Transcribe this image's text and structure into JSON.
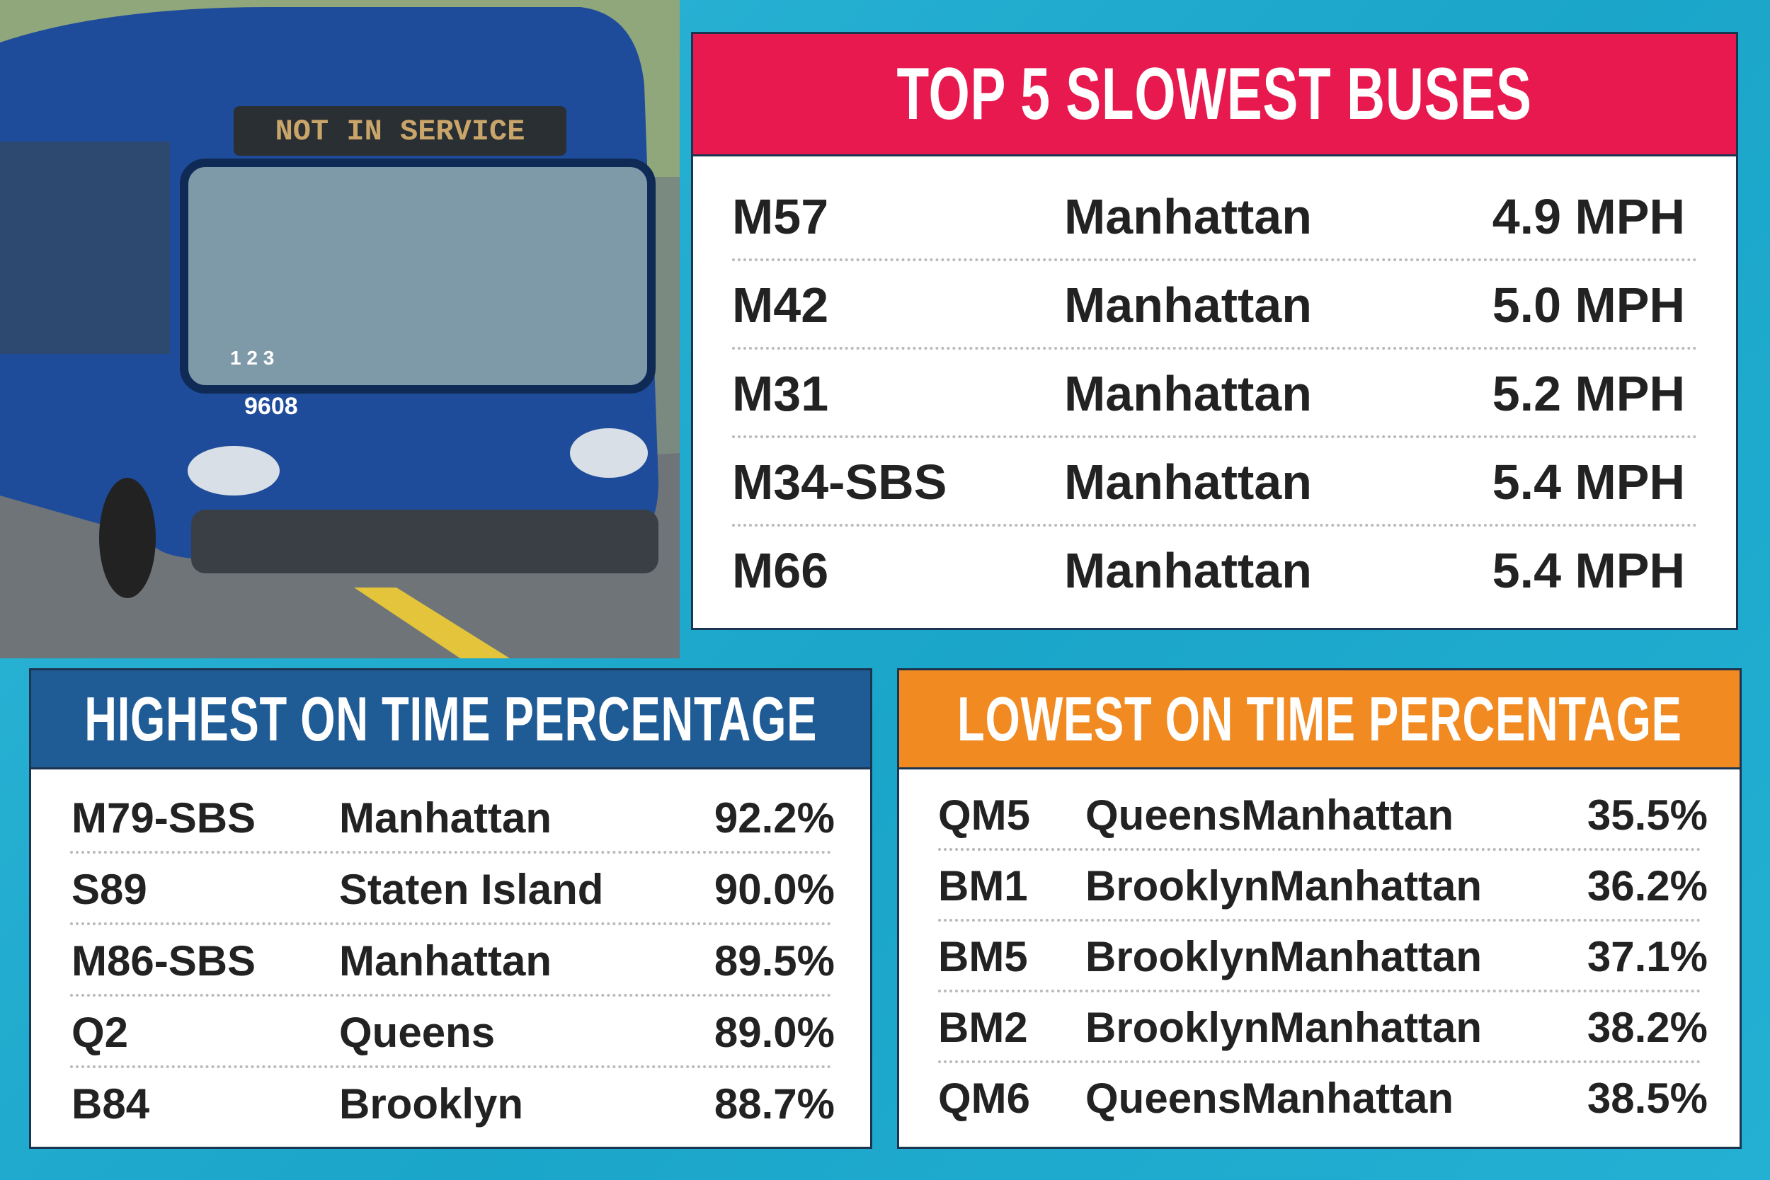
{
  "photo": {
    "destination_sign": "NOT IN SERVICE",
    "bus_number": "9608",
    "route_display": "1 2 3"
  },
  "slowest": {
    "title": "TOP 5 SLOWEST BUSES",
    "rows": [
      [
        "M57",
        "Manhattan",
        "4.9 MPH"
      ],
      [
        "M42",
        "Manhattan",
        "5.0 MPH"
      ],
      [
        "M31",
        "Manhattan",
        "5.2 MPH"
      ],
      [
        "M34-SBS",
        "Manhattan",
        "5.4 MPH"
      ],
      [
        "M66",
        "Manhattan",
        "5.4 MPH"
      ]
    ]
  },
  "highest": {
    "title": "HIGHEST ON TIME PERCENTAGE",
    "rows": [
      [
        "M79-SBS",
        "Manhattan",
        "92.2%"
      ],
      [
        "S89",
        "Staten Island",
        "90.0%"
      ],
      [
        "M86-SBS",
        "Manhattan",
        "89.5%"
      ],
      [
        "Q2",
        "Queens",
        "89.0%"
      ],
      [
        "B84",
        "Brooklyn",
        "88.7%"
      ]
    ]
  },
  "lowest": {
    "title": "LOWEST ON TIME PERCENTAGE",
    "rows": [
      [
        "QM5",
        "QueensManhattan",
        "35.5%"
      ],
      [
        "BM1",
        "BrooklynManhattan",
        "36.2%"
      ],
      [
        "BM5",
        "BrooklynManhattan",
        "37.1%"
      ],
      [
        "BM2",
        "BrooklynManhattan",
        "38.2%"
      ],
      [
        "QM6",
        "QueensManhattan",
        "38.5%"
      ]
    ]
  }
}
